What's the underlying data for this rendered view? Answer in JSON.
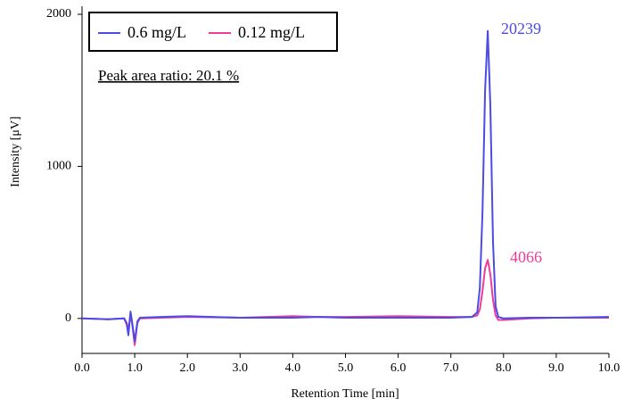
{
  "chart_data": {
    "type": "line",
    "x_label": "Retention Time [min]",
    "y_label": "Intensity [μV]",
    "annotation": "Peak area ratio: 20.1 %",
    "x": [
      0,
      0.5,
      0.8,
      0.85,
      0.88,
      0.92,
      0.95,
      1.0,
      1.05,
      1.1,
      1.5,
      2.0,
      3.0,
      4.0,
      4.5,
      5.0,
      6.0,
      7.0,
      7.4,
      7.5,
      7.55,
      7.6,
      7.65,
      7.7,
      7.75,
      7.8,
      7.85,
      7.9,
      8.0,
      8.5,
      9.0,
      10.0
    ],
    "series": [
      {
        "name": "0.6 mg/L",
        "color": "#4b4be6",
        "peak_label": "20239",
        "values": [
          0,
          -5,
          0,
          -40,
          -110,
          45,
          -20,
          -150,
          -20,
          5,
          10,
          15,
          5,
          5,
          10,
          5,
          5,
          5,
          10,
          40,
          200,
          700,
          1500,
          1890,
          1400,
          500,
          80,
          10,
          0,
          5,
          5,
          10
        ]
      },
      {
        "name": "0.12 mg/L",
        "color": "#ee3c98",
        "peak_label": "4066",
        "values": [
          0,
          -5,
          0,
          -30,
          -80,
          30,
          -30,
          -175,
          -30,
          0,
          5,
          10,
          5,
          15,
          10,
          10,
          15,
          10,
          10,
          20,
          60,
          180,
          330,
          385,
          290,
          120,
          20,
          -10,
          -10,
          0,
          5,
          5
        ]
      }
    ],
    "xlim": [
      0,
      10
    ],
    "ylim": [
      -230,
      2050
    ],
    "xticks": [
      {
        "value": 0,
        "label": "0.0"
      },
      {
        "value": 1,
        "label": "1.0"
      },
      {
        "value": 2,
        "label": "2.0"
      },
      {
        "value": 3,
        "label": "3.0"
      },
      {
        "value": 4,
        "label": "4.0"
      },
      {
        "value": 5,
        "label": "5.0"
      },
      {
        "value": 6,
        "label": "6.0"
      },
      {
        "value": 7,
        "label": "7.0"
      },
      {
        "value": 8,
        "label": "8.0"
      },
      {
        "value": 9,
        "label": "9.0"
      },
      {
        "value": 10,
        "label": "10.0"
      }
    ],
    "yticks": [
      0,
      1000,
      2000
    ]
  }
}
